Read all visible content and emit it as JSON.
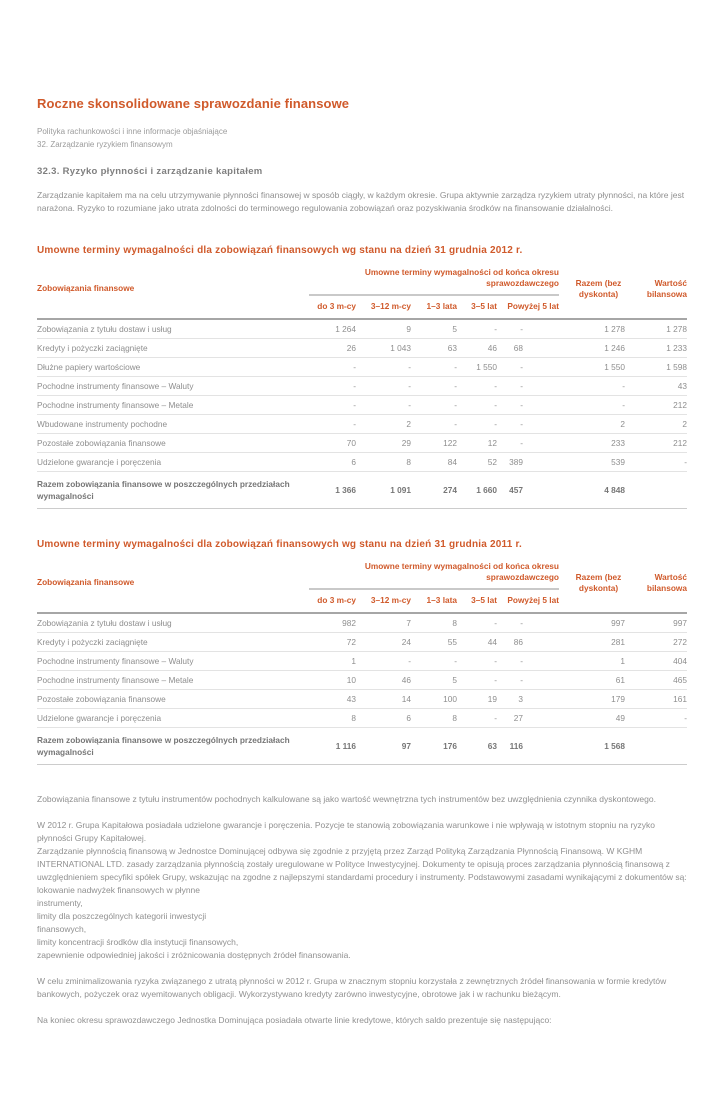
{
  "colors": {
    "accent_orange": "#d05a2b",
    "text_grey": "#8e8e8e"
  },
  "page": {
    "title": "Roczne skonsolidowane sprawozdanie finansowe",
    "breadcrumb_line1": "Polityka rachunkowości i inne informacje objaśniające",
    "breadcrumb_line2": "32. Zarządzanie ryzykiem finansowym",
    "section_heading": "32.3. Ryzyko płynności i zarządzanie kapitałem",
    "intro_paragraph": "Zarządzanie kapitałem ma na celu utrzymywanie płynności finansowej w sposób ciągły, w każdym okresie. Grupa aktywnie zarządza ryzykiem utraty płynności, na które jest narażona. Ryzyko to rozumiane jako utrata zdolności do terminowego regulowania zobowiązań oraz pozyskiwania środków na finansowanie działalności."
  },
  "tables": [
    {
      "title": "Umowne terminy wymagalności dla zobowiązań finansowych wg stanu na dzień 31 grudnia 2012 r.",
      "first_col_header": "Zobowiązania finansowe",
      "span_header": "Umowne terminy wymagalności od końca okresu sprawozdawczego",
      "sub_columns": [
        "do 3 m-cy",
        "3–12 m-cy",
        "1–3 lata",
        "3–5 lat",
        "Powyżej 5 lat"
      ],
      "razem_header": "Razem (bez dyskonta)",
      "wartosc_header": "Wartość bilansowa",
      "rows": [
        {
          "label": "Zobowiązania z tytułu dostaw i usług",
          "values": [
            "1 264",
            "9",
            "5",
            "-",
            "-",
            "1 278",
            "1 278"
          ]
        },
        {
          "label": "Kredyty i pożyczki zaciągnięte",
          "values": [
            "26",
            "1 043",
            "63",
            "46",
            "68",
            "1 246",
            "1 233"
          ]
        },
        {
          "label": "Dłużne papiery wartościowe",
          "values": [
            "-",
            "-",
            "-",
            "1 550",
            "-",
            "1 550",
            "1 598"
          ]
        },
        {
          "label": "Pochodne instrumenty finansowe – Waluty",
          "values": [
            "-",
            "-",
            "-",
            "-",
            "-",
            "-",
            "43"
          ]
        },
        {
          "label": "Pochodne instrumenty finansowe – Metale",
          "values": [
            "-",
            "-",
            "-",
            "-",
            "-",
            "-",
            "212"
          ]
        },
        {
          "label": "Wbudowane instrumenty pochodne",
          "values": [
            "-",
            "2",
            "-",
            "-",
            "-",
            "2",
            "2"
          ]
        },
        {
          "label": "Pozostałe zobowiązania finansowe",
          "values": [
            "70",
            "29",
            "122",
            "12",
            "-",
            "233",
            "212"
          ]
        },
        {
          "label": "Udzielone gwarancje i poręczenia",
          "values": [
            "6",
            "8",
            "84",
            "52",
            "389",
            "539",
            "-"
          ]
        }
      ],
      "total_row": {
        "label": "Razem zobowiązania finansowe w poszczególnych przedziałach wymagalności",
        "values": [
          "1 366",
          "1 091",
          "274",
          "1 660",
          "457",
          "4 848",
          ""
        ]
      }
    },
    {
      "title": "Umowne terminy wymagalności dla zobowiązań finansowych wg stanu na dzień 31 grudnia 2011 r.",
      "first_col_header": "Zobowiązania finansowe",
      "span_header": "Umowne terminy wymagalności od końca okresu sprawozdawczego",
      "sub_columns": [
        "do 3 m-cy",
        "3–12 m-cy",
        "1–3 lata",
        "3–5 lat",
        "Powyżej 5 lat"
      ],
      "razem_header": "Razem (bez dyskonta)",
      "wartosc_header": "Wartość bilansowa",
      "rows": [
        {
          "label": "Zobowiązania z tytułu dostaw i usług",
          "values": [
            "982",
            "7",
            "8",
            "-",
            "-",
            "997",
            "997"
          ]
        },
        {
          "label": "Kredyty i pożyczki zaciągnięte",
          "values": [
            "72",
            "24",
            "55",
            "44",
            "86",
            "281",
            "272"
          ]
        },
        {
          "label": "Pochodne instrumenty finansowe – Waluty",
          "values": [
            "1",
            "-",
            "-",
            "-",
            "-",
            "1",
            "404"
          ]
        },
        {
          "label": "Pochodne instrumenty finansowe – Metale",
          "values": [
            "10",
            "46",
            "5",
            "-",
            "-",
            "61",
            "465"
          ]
        },
        {
          "label": "Pozostałe zobowiązania finansowe",
          "values": [
            "43",
            "14",
            "100",
            "19",
            "3",
            "179",
            "161"
          ]
        },
        {
          "label": "Udzielone gwarancje i poręczenia",
          "values": [
            "8",
            "6",
            "8",
            "-",
            "27",
            "49",
            "-"
          ]
        }
      ],
      "total_row": {
        "label": "Razem zobowiązania finansowe w poszczególnych przedziałach wymagalności",
        "values": [
          "1 116",
          "97",
          "176",
          "63",
          "116",
          "1 568",
          ""
        ]
      }
    }
  ],
  "paragraphs": [
    "Zobowiązania finansowe z tytułu instrumentów pochodnych kalkulowane są jako wartość wewnętrzna tych instrumentów bez uwzględnienia czynnika dyskontowego.",
    "W 2012 r. Grupa Kapitałowa posiadała udzielone gwarancje i poręczenia. Pozycje te stanowią zobowiązania warunkowe i nie wpływają w istotnym stopniu na ryzyko płynności Grupy Kapitałowej.\nZarządzanie płynnością finansową w Jednostce Dominującej odbywa się zgodnie z przyjętą przez Zarząd Polityką Zarządzania Płynnością Finansową. W KGHM INTERNATIONAL LTD. zasady zarządzania płynnością zostały uregulowane w Polityce Inwestycyjnej. Dokumenty te opisują proces zarządzania płynnością finansową z uwzględnieniem specyfiki spółek Grupy, wskazując na zgodne z najlepszymi standardami procedury i instrumenty. Podstawowymi zasadami wynikającymi z dokumentów są:\nlokowanie nadwyżek finansowych w płynne\ninstrumenty,\nlimity dla poszczególnych kategorii inwestycji\nfinansowych,\nlimity koncentracji środków dla instytucji finansowych,\nzapewnienie odpowiedniej jakości i zróżnicowania dostępnych źródeł finansowania.",
    "W celu zminimalizowania ryzyka związanego z utratą płynności w 2012 r. Grupa w znacznym stopniu korzystała z zewnętrznych źródeł finansowania w formie kredytów bankowych, pożyczek oraz wyemitowanych obligacji. Wykorzystywano kredyty zarówno inwestycyjne, obrotowe jak i w rachunku bieżącym.",
    "Na koniec okresu sprawozdawczego Jednostka Dominująca posiadała otwarte linie kredytowe, których saldo prezentuje się następująco:"
  ]
}
